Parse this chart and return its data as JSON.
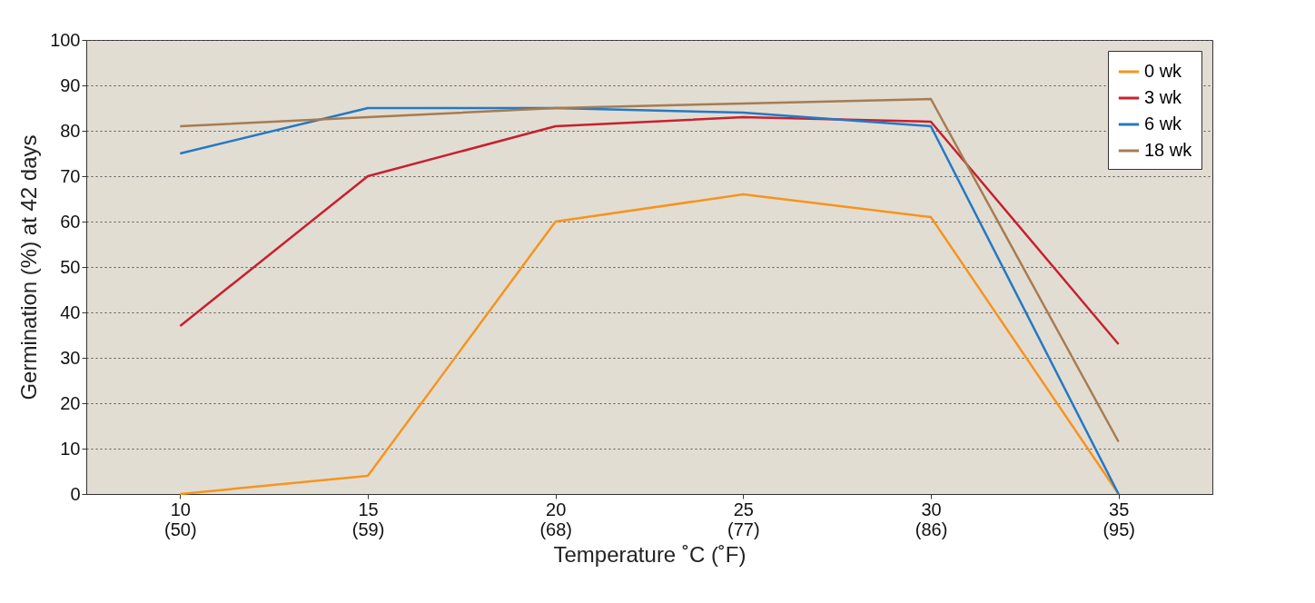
{
  "chart_data": {
    "type": "line",
    "xlabel": "Temperature ˚C (˚F)",
    "ylabel": "Germination (%) at 42 days",
    "categories": [
      "10\n(50)",
      "15\n(59)",
      "20\n(68)",
      "25\n(77)",
      "30\n(86)",
      "35\n(95)"
    ],
    "ylim": [
      0,
      100
    ],
    "yticks": [
      0,
      10,
      20,
      30,
      40,
      50,
      60,
      70,
      80,
      90,
      100
    ],
    "grid": "y",
    "legend": "top right",
    "marker": "none",
    "line_style": "solid",
    "series": [
      {
        "name": "0 wk",
        "color": "#f7941d",
        "values": [
          0,
          4,
          60,
          66,
          61,
          0
        ]
      },
      {
        "name": "3 wk",
        "color": "#c8202f",
        "values": [
          37,
          70,
          81,
          83,
          82,
          33
        ]
      },
      {
        "name": "6 wk",
        "color": "#2479c4",
        "values": [
          75,
          85,
          85,
          84,
          81,
          0
        ]
      },
      {
        "name": "18 wk",
        "color": "#a67c52",
        "values": [
          81,
          83,
          85,
          86,
          87,
          11.5
        ]
      }
    ]
  }
}
